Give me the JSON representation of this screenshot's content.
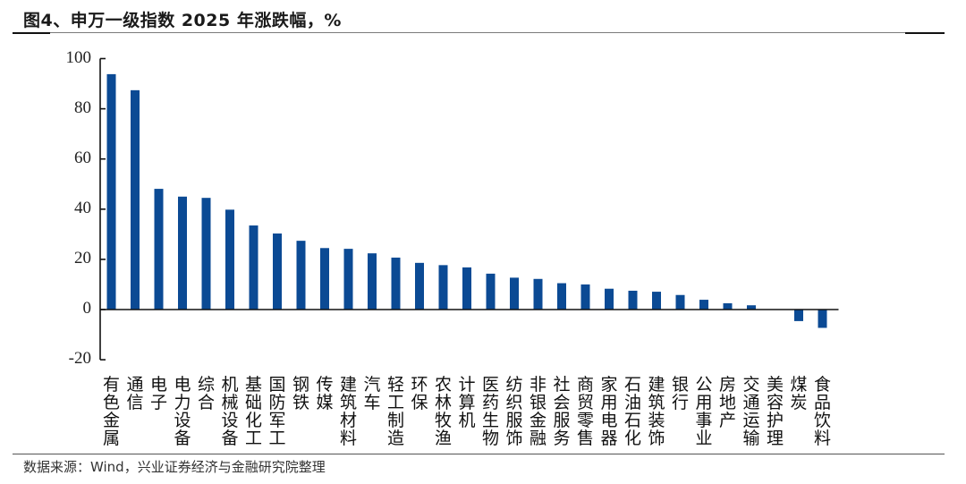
{
  "header": {
    "title": "图4、申万一级指数 2025 年涨跌幅，%"
  },
  "footer": {
    "source": "数据来源：Wind，兴业证券经济与金融研究院整理"
  },
  "colors": {
    "bar": "#0B4A94",
    "axis": "#111111"
  },
  "chart_data": {
    "type": "bar",
    "title": "申万一级指数 2025 年涨跌幅，%",
    "xlabel": "",
    "ylabel": "%",
    "ylim": [
      -20,
      100
    ],
    "yticks": [
      100,
      80,
      60,
      40,
      20,
      0,
      -20
    ],
    "grid": false,
    "legend": null,
    "categories": [
      "有色金属",
      "通信",
      "电子",
      "电力设备",
      "综合",
      "机械设备",
      "基础化工",
      "国防军工",
      "钢铁",
      "传媒",
      "建筑材料",
      "汽车",
      "轻工制造",
      "环保",
      "农林牧渔",
      "计算机",
      "医药生物",
      "纺织服饰",
      "非银金融",
      "社会服务",
      "商贸零售",
      "家用电器",
      "石油石化",
      "建筑装饰",
      "银行",
      "公用事业",
      "房地产",
      "交通运输",
      "美容护理",
      "煤炭",
      "食品饮料"
    ],
    "values": [
      93.8,
      87.4,
      48.1,
      45.0,
      44.5,
      39.8,
      33.5,
      30.3,
      27.4,
      24.5,
      24.2,
      22.4,
      20.7,
      18.6,
      17.7,
      16.8,
      14.3,
      12.7,
      12.2,
      10.5,
      10.0,
      8.3,
      7.5,
      7.1,
      5.8,
      3.9,
      2.5,
      1.7,
      0.0,
      -4.6,
      -7.3
    ]
  }
}
